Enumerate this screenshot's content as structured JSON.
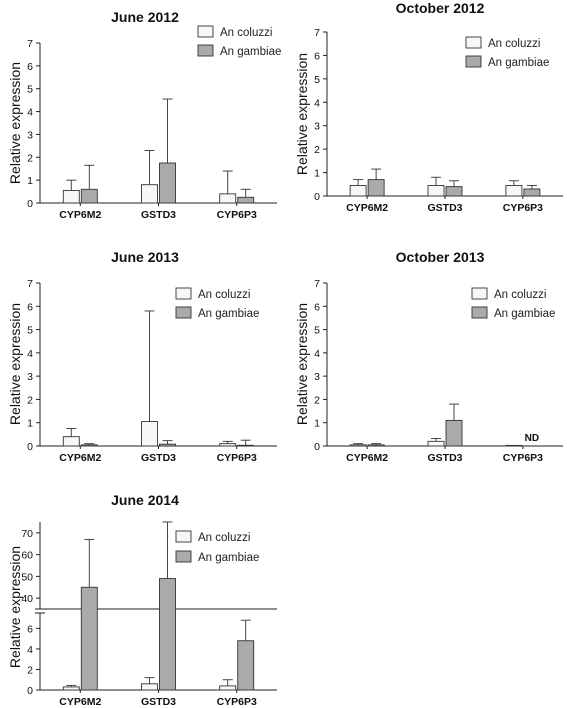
{
  "colors": {
    "coluzzi": "#f7f7f7",
    "gambiae": "#aaaaaa",
    "stroke": "#333333"
  },
  "chart_data": [
    {
      "type": "bar",
      "title": "June 2012",
      "ylabel": "Relative expression",
      "ylim": [
        0,
        7
      ],
      "yticks": [
        "0",
        "1",
        "2",
        "3",
        "4",
        "5",
        "6",
        "7"
      ],
      "categories": [
        "CYP6M2",
        "GSTD3",
        "CYP6P3"
      ],
      "legend_position": "top-right",
      "series": [
        {
          "name": "An coluzzi",
          "values": [
            0.55,
            0.8,
            0.4
          ],
          "errors": [
            0.45,
            1.5,
            1.0
          ]
        },
        {
          "name": "An gambiae",
          "values": [
            0.6,
            1.75,
            0.25
          ],
          "errors": [
            1.05,
            2.8,
            0.35
          ]
        }
      ]
    },
    {
      "type": "bar",
      "title": "October 2012",
      "ylabel": "Relative expression",
      "ylim": [
        0,
        7
      ],
      "yticks": [
        "0",
        "1",
        "2",
        "3",
        "4",
        "5",
        "6",
        "7"
      ],
      "categories": [
        "CYP6M2",
        "GSTD3",
        "CYP6P3"
      ],
      "legend_position": "top-right",
      "series": [
        {
          "name": "An coluzzi",
          "values": [
            0.45,
            0.45,
            0.45
          ],
          "errors": [
            0.25,
            0.35,
            0.2
          ]
        },
        {
          "name": "An gambiae",
          "values": [
            0.7,
            0.4,
            0.3
          ],
          "errors": [
            0.45,
            0.25,
            0.15
          ]
        }
      ]
    },
    {
      "type": "bar",
      "title": "June 2013",
      "ylabel": "Relative expression",
      "ylim": [
        0,
        7
      ],
      "yticks": [
        "0",
        "1",
        "2",
        "3",
        "4",
        "5",
        "6",
        "7"
      ],
      "categories": [
        "CYP6M2",
        "GSTD3",
        "CYP6P3"
      ],
      "legend_position": "top-right",
      "series": [
        {
          "name": "An coluzzi",
          "values": [
            0.4,
            1.05,
            0.1
          ],
          "errors": [
            0.35,
            4.75,
            0.1
          ]
        },
        {
          "name": "An gambiae",
          "values": [
            0.05,
            0.08,
            0.03
          ],
          "errors": [
            0.05,
            0.15,
            0.22
          ]
        }
      ]
    },
    {
      "type": "bar",
      "title": "October 2013",
      "ylabel": "Relative expression",
      "ylim": [
        0,
        7
      ],
      "yticks": [
        "0",
        "1",
        "2",
        "3",
        "4",
        "5",
        "6",
        "7"
      ],
      "categories": [
        "CYP6M2",
        "GSTD3",
        "CYP6P3"
      ],
      "legend_position": "top-right",
      "annotations": [
        {
          "text": "ND",
          "category": 2,
          "series": 1
        }
      ],
      "series": [
        {
          "name": "An coluzzi",
          "values": [
            0.05,
            0.2,
            0.02
          ],
          "errors": [
            0.05,
            0.12,
            0.0
          ]
        },
        {
          "name": "An gambiae",
          "values": [
            0.05,
            1.1,
            null
          ],
          "errors": [
            0.05,
            0.7,
            null
          ]
        }
      ]
    },
    {
      "type": "bar",
      "title": "June 2014",
      "ylabel": "Relative expression",
      "broken_axis": {
        "lower": [
          0,
          7.5
        ],
        "upper": [
          35,
          75
        ]
      },
      "yticks_lower": [
        "0",
        "2",
        "4",
        "6"
      ],
      "yticks_upper": [
        "40",
        "50",
        "60",
        "70"
      ],
      "categories": [
        "CYP6M2",
        "GSTD3",
        "CYP6P3"
      ],
      "legend_position": "top-right",
      "series": [
        {
          "name": "An coluzzi",
          "values": [
            0.3,
            0.6,
            0.4
          ],
          "errors": [
            0.15,
            0.6,
            0.6
          ]
        },
        {
          "name": "An gambiae",
          "values": [
            45,
            49,
            4.8
          ],
          "errors": [
            22,
            26,
            2.0
          ]
        }
      ]
    }
  ]
}
